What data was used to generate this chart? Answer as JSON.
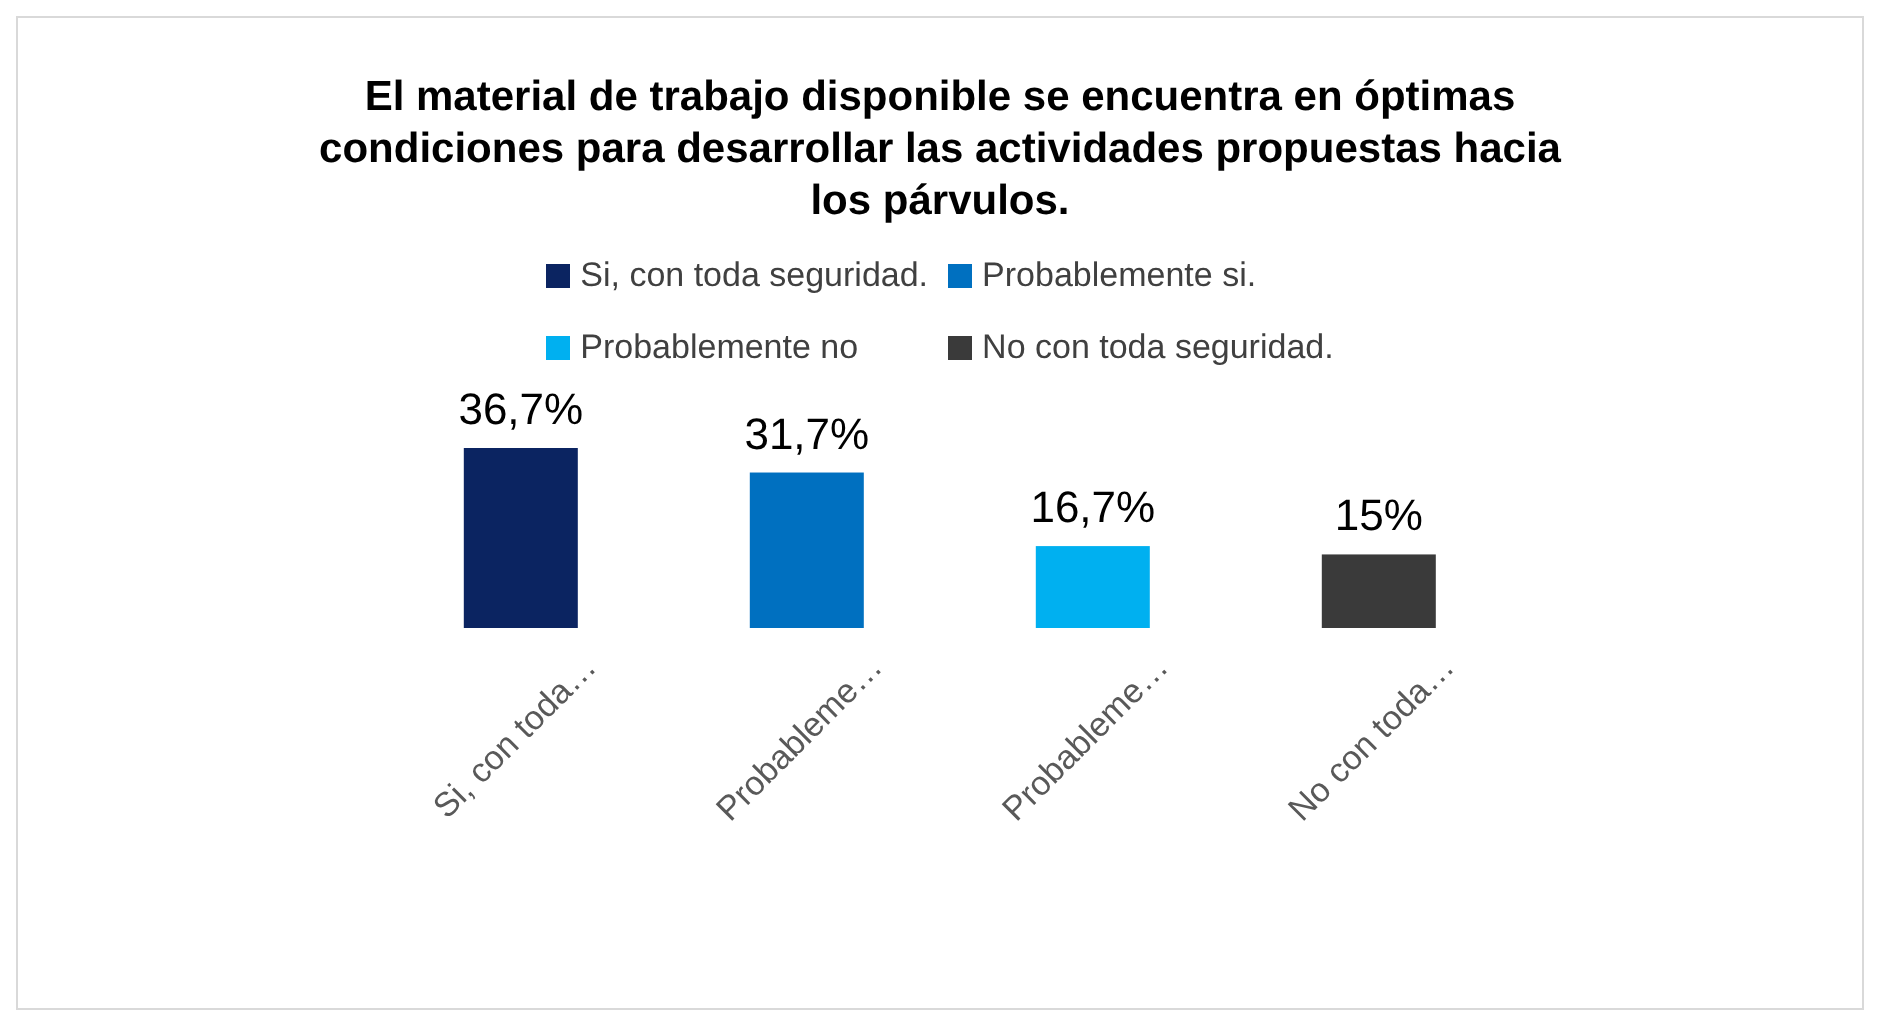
{
  "chart_data": {
    "type": "bar",
    "title": "El material de trabajo disponible se encuentra en óptimas condiciones para desarrollar las actividades propuestas hacia los párvulos.",
    "categories": [
      "Si, con toda…",
      "Probableme…",
      "Probableme…",
      "No con toda…"
    ],
    "stacked": true,
    "legend": "top",
    "series": [
      {
        "name": "Si, con toda seguridad.",
        "color": "#0b2461",
        "values": [
          36.7,
          null,
          null,
          null
        ],
        "value_labels": [
          "36,7%",
          null,
          null,
          null
        ]
      },
      {
        "name": "Probablemente si.",
        "color": "#0070c0",
        "values": [
          null,
          31.7,
          null,
          null
        ],
        "value_labels": [
          null,
          "31,7%",
          null,
          null
        ]
      },
      {
        "name": "Probablemente no",
        "color": "#00b0f0",
        "values": [
          null,
          null,
          16.7,
          null
        ],
        "value_labels": [
          null,
          null,
          "16,7%",
          null
        ]
      },
      {
        "name": "No con toda seguridad.",
        "color": "#3a3a3a",
        "values": [
          null,
          null,
          null,
          15
        ],
        "value_labels": [
          null,
          null,
          null,
          "15%"
        ]
      }
    ]
  }
}
